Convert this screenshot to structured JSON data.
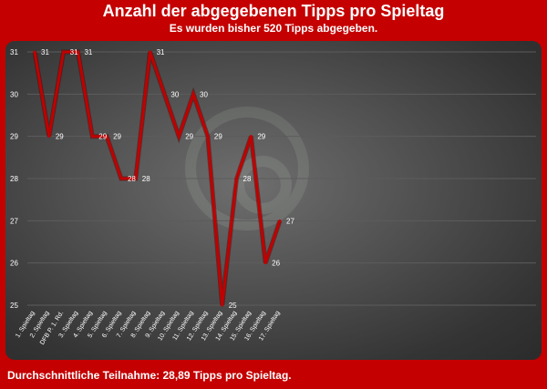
{
  "header": {
    "title": "Anzahl der abgegebenen Tipps pro Spieltag",
    "subtitle": "Es wurden bisher 520 Tipps abgegeben."
  },
  "footer": {
    "text": "Durchschnittliche Teilnahme: 28,89 Tipps pro Spieltag."
  },
  "colors": {
    "background": "#c40000",
    "line": "#c00000",
    "label": "#ffffff",
    "grid": "#5c5c5c"
  },
  "chart_data": {
    "type": "line",
    "title": "Anzahl der abgegebenen Tipps pro Spieltag",
    "subtitle": "Es wurden bisher 520 Tipps abgegeben.",
    "categories": [
      "1. Spieltag",
      "2. Spieltag",
      "DFB P. 1. Rd.",
      "3. Spieltag",
      "4. Spieltag",
      "5. Spieltag",
      "6. Spieltag",
      "7. Spieltag",
      "8. Spieltag",
      "9. Spieltag",
      "10. Spieltag",
      "11. Spieltag",
      "12. Spieltag",
      "13. Spieltag",
      "14. Spieltag",
      "15. Spieltag",
      "16. Spieltag",
      "17. Spieltag"
    ],
    "series": [
      {
        "values": [
          31,
          29,
          31,
          31,
          29,
          29,
          28,
          28,
          31,
          30,
          29,
          30,
          29,
          25,
          28,
          29,
          26,
          27
        ]
      }
    ],
    "yticks": [
      25,
      26,
      27,
      28,
      29,
      30,
      31
    ],
    "ylim": [
      25,
      31
    ],
    "grid": true,
    "legend": "none",
    "data_labels": true
  }
}
